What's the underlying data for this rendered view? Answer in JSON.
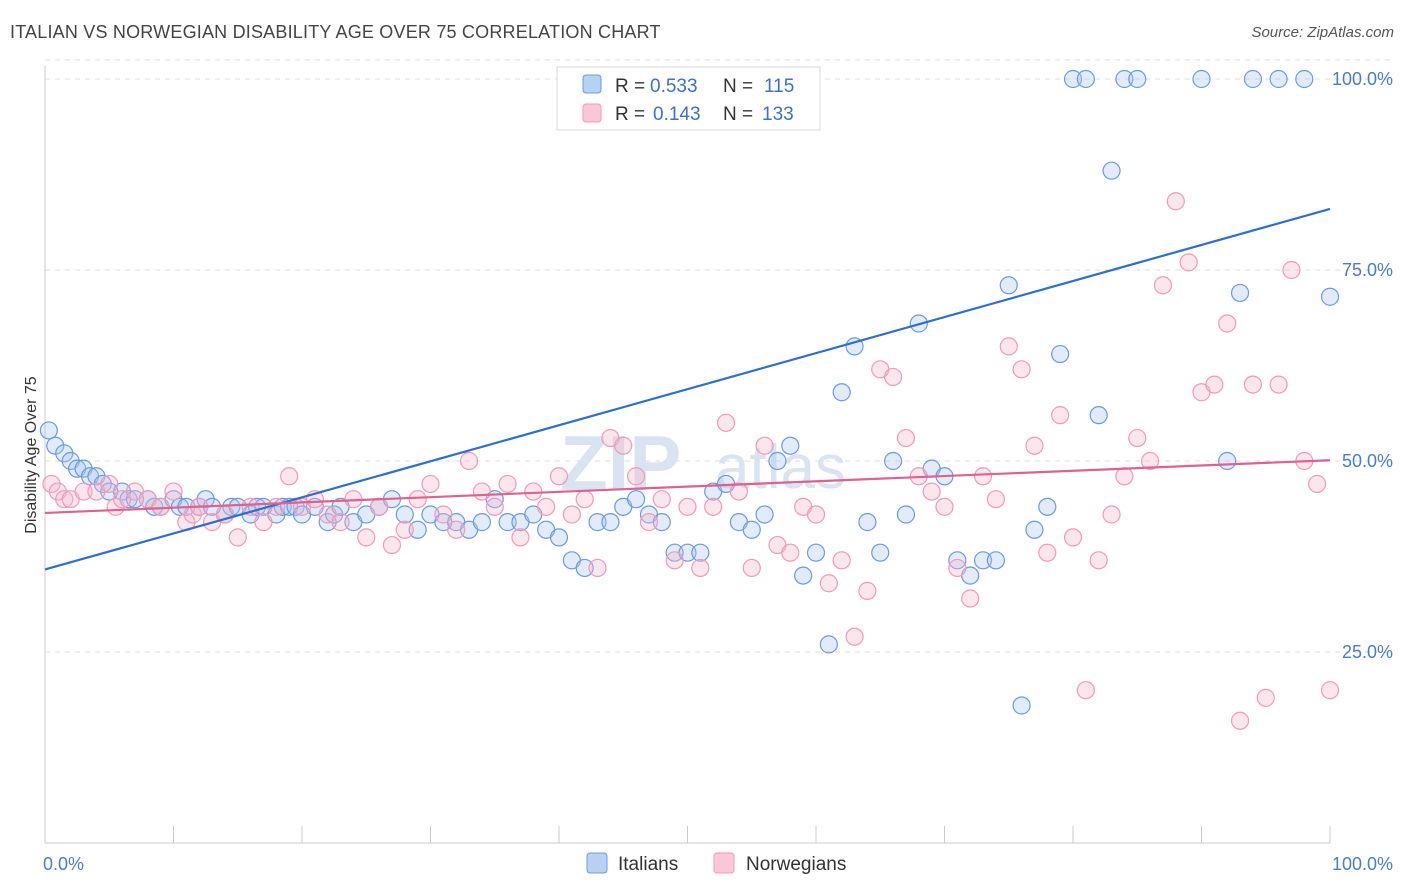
{
  "title": "ITALIAN VS NORWEGIAN DISABILITY AGE OVER 75 CORRELATION CHART",
  "source": "Source: ZipAtlas.com",
  "watermark": {
    "zip": "ZIP",
    "atlas": "atlas"
  },
  "colors": {
    "italians": "#6b9be0",
    "norwegians": "#f09ab8",
    "italians_line": "#2f6fcf",
    "norwegians_line": "#e0608f"
  },
  "legend": {
    "rows": [
      {
        "r_label": "R =",
        "r_value": "0.533",
        "n_label": "N =",
        "n_value": "115"
      },
      {
        "r_label": "R =",
        "r_value": "0.143",
        "n_label": "N =",
        "n_value": "133"
      }
    ]
  },
  "chart_data": {
    "type": "scatter",
    "title": "ITALIAN VS NORWEGIAN DISABILITY AGE OVER 75 CORRELATION CHART",
    "ylabel": "Disability Age Over 75",
    "xlabel": "",
    "xlim": [
      0,
      100
    ],
    "ylim": [
      0,
      104
    ],
    "x_tick_labels": [
      "0.0%",
      "100.0%"
    ],
    "y_ticks": [
      25,
      50,
      75,
      100
    ],
    "y_tick_labels": [
      "25.0%",
      "50.0%",
      "75.0%",
      "100.0%"
    ],
    "grid": "horizontal dashed",
    "legend_position": "bottom-center",
    "series": [
      {
        "name": "Italians",
        "color": "#6b9be0",
        "trend": [
          [
            0,
            35.8
          ],
          [
            100,
            83.0
          ]
        ],
        "points": [
          [
            0.3,
            54
          ],
          [
            0.8,
            52
          ],
          [
            1.5,
            51
          ],
          [
            2,
            50
          ],
          [
            2.5,
            49
          ],
          [
            3,
            49
          ],
          [
            3.5,
            48
          ],
          [
            4,
            48
          ],
          [
            4.5,
            47
          ],
          [
            5,
            46
          ],
          [
            6,
            46
          ],
          [
            6.5,
            45
          ],
          [
            7,
            45
          ],
          [
            8,
            45
          ],
          [
            8.5,
            44
          ],
          [
            9,
            44
          ],
          [
            10,
            45
          ],
          [
            10.5,
            44
          ],
          [
            11,
            44
          ],
          [
            12,
            44
          ],
          [
            12.5,
            45
          ],
          [
            13,
            44
          ],
          [
            14,
            43
          ],
          [
            14.5,
            44
          ],
          [
            15,
            44
          ],
          [
            16,
            43
          ],
          [
            16.5,
            44
          ],
          [
            17,
            44
          ],
          [
            18,
            43
          ],
          [
            18.5,
            44
          ],
          [
            19,
            44
          ],
          [
            19.5,
            44
          ],
          [
            20,
            43
          ],
          [
            21,
            44
          ],
          [
            22,
            42
          ],
          [
            22.5,
            43
          ],
          [
            23,
            44
          ],
          [
            24,
            42
          ],
          [
            25,
            43
          ],
          [
            26,
            44
          ],
          [
            27,
            45
          ],
          [
            28,
            43
          ],
          [
            29,
            41
          ],
          [
            30,
            43
          ],
          [
            31,
            42
          ],
          [
            32,
            42
          ],
          [
            33,
            41
          ],
          [
            34,
            42
          ],
          [
            35,
            45
          ],
          [
            36,
            42
          ],
          [
            37,
            42
          ],
          [
            38,
            43
          ],
          [
            39,
            41
          ],
          [
            40,
            40
          ],
          [
            41,
            37
          ],
          [
            42,
            36
          ],
          [
            43,
            42
          ],
          [
            44,
            42
          ],
          [
            45,
            44
          ],
          [
            46,
            45
          ],
          [
            47,
            43
          ],
          [
            48,
            42
          ],
          [
            49,
            38
          ],
          [
            50,
            38
          ],
          [
            51,
            38
          ],
          [
            52,
            46
          ],
          [
            53,
            47
          ],
          [
            54,
            42
          ],
          [
            55,
            41
          ],
          [
            56,
            43
          ],
          [
            57,
            50
          ],
          [
            58,
            52
          ],
          [
            59,
            35
          ],
          [
            60,
            38
          ],
          [
            61,
            26
          ],
          [
            62,
            59
          ],
          [
            63,
            65
          ],
          [
            64,
            42
          ],
          [
            65,
            38
          ],
          [
            66,
            50
          ],
          [
            67,
            43
          ],
          [
            68,
            68
          ],
          [
            69,
            49
          ],
          [
            70,
            48
          ],
          [
            71,
            37
          ],
          [
            72,
            35
          ],
          [
            73,
            37
          ],
          [
            74,
            37
          ],
          [
            75,
            73
          ],
          [
            76,
            18
          ],
          [
            77,
            41
          ],
          [
            78,
            44
          ],
          [
            79,
            64
          ],
          [
            80,
            100
          ],
          [
            81,
            100
          ],
          [
            82,
            56
          ],
          [
            83,
            88
          ],
          [
            84,
            100
          ],
          [
            85,
            100
          ],
          [
            90,
            100
          ],
          [
            92,
            50
          ],
          [
            93,
            72
          ],
          [
            94,
            100
          ],
          [
            96,
            100
          ],
          [
            98,
            100
          ],
          [
            100,
            71.5
          ]
        ]
      },
      {
        "name": "Norwegians",
        "color": "#f09ab8",
        "trend": [
          [
            0,
            43.2
          ],
          [
            100,
            50.1
          ]
        ],
        "points": [
          [
            0.5,
            47
          ],
          [
            1,
            46
          ],
          [
            1.5,
            45
          ],
          [
            2,
            45
          ],
          [
            3,
            46
          ],
          [
            4,
            46
          ],
          [
            5,
            47
          ],
          [
            5.5,
            44
          ],
          [
            6,
            45
          ],
          [
            7,
            46
          ],
          [
            8,
            45
          ],
          [
            9,
            44
          ],
          [
            10,
            46
          ],
          [
            11,
            42
          ],
          [
            11.5,
            43
          ],
          [
            12,
            44
          ],
          [
            13,
            42
          ],
          [
            14,
            43
          ],
          [
            15,
            40
          ],
          [
            16,
            44
          ],
          [
            17,
            42
          ],
          [
            18,
            44
          ],
          [
            19,
            48
          ],
          [
            20,
            44
          ],
          [
            21,
            45
          ],
          [
            22,
            43
          ],
          [
            23,
            42
          ],
          [
            24,
            45
          ],
          [
            25,
            40
          ],
          [
            26,
            44
          ],
          [
            27,
            39
          ],
          [
            28,
            41
          ],
          [
            29,
            45
          ],
          [
            30,
            47
          ],
          [
            31,
            43
          ],
          [
            32,
            41
          ],
          [
            33,
            50
          ],
          [
            34,
            46
          ],
          [
            35,
            44
          ],
          [
            36,
            47
          ],
          [
            37,
            40
          ],
          [
            38,
            46
          ],
          [
            39,
            44
          ],
          [
            40,
            48
          ],
          [
            41,
            43
          ],
          [
            42,
            45
          ],
          [
            43,
            36
          ],
          [
            44,
            53
          ],
          [
            45,
            52
          ],
          [
            46,
            48
          ],
          [
            47,
            42
          ],
          [
            48,
            45
          ],
          [
            49,
            37
          ],
          [
            50,
            44
          ],
          [
            51,
            36
          ],
          [
            52,
            44
          ],
          [
            53,
            55
          ],
          [
            54,
            46
          ],
          [
            55,
            36
          ],
          [
            56,
            52
          ],
          [
            57,
            39
          ],
          [
            58,
            38
          ],
          [
            59,
            44
          ],
          [
            60,
            43
          ],
          [
            61,
            34
          ],
          [
            62,
            37
          ],
          [
            63,
            27
          ],
          [
            64,
            33
          ],
          [
            65,
            62
          ],
          [
            66,
            61
          ],
          [
            67,
            53
          ],
          [
            68,
            48
          ],
          [
            69,
            46
          ],
          [
            70,
            44
          ],
          [
            71,
            36
          ],
          [
            72,
            32
          ],
          [
            73,
            48
          ],
          [
            74,
            45
          ],
          [
            75,
            65
          ],
          [
            76,
            62
          ],
          [
            77,
            52
          ],
          [
            78,
            38
          ],
          [
            79,
            56
          ],
          [
            80,
            40
          ],
          [
            81,
            20
          ],
          [
            82,
            37
          ],
          [
            83,
            43
          ],
          [
            84,
            48
          ],
          [
            85,
            53
          ],
          [
            86,
            50
          ],
          [
            87,
            73
          ],
          [
            88,
            84
          ],
          [
            89,
            76
          ],
          [
            90,
            59
          ],
          [
            91,
            60
          ],
          [
            92,
            68
          ],
          [
            93,
            16
          ],
          [
            94,
            60
          ],
          [
            95,
            19
          ],
          [
            96,
            60
          ],
          [
            97,
            75
          ],
          [
            98,
            50
          ],
          [
            99,
            47
          ],
          [
            100,
            20
          ]
        ]
      }
    ]
  },
  "bottom_legend": [
    {
      "label": "Italians"
    },
    {
      "label": "Norwegians"
    }
  ]
}
